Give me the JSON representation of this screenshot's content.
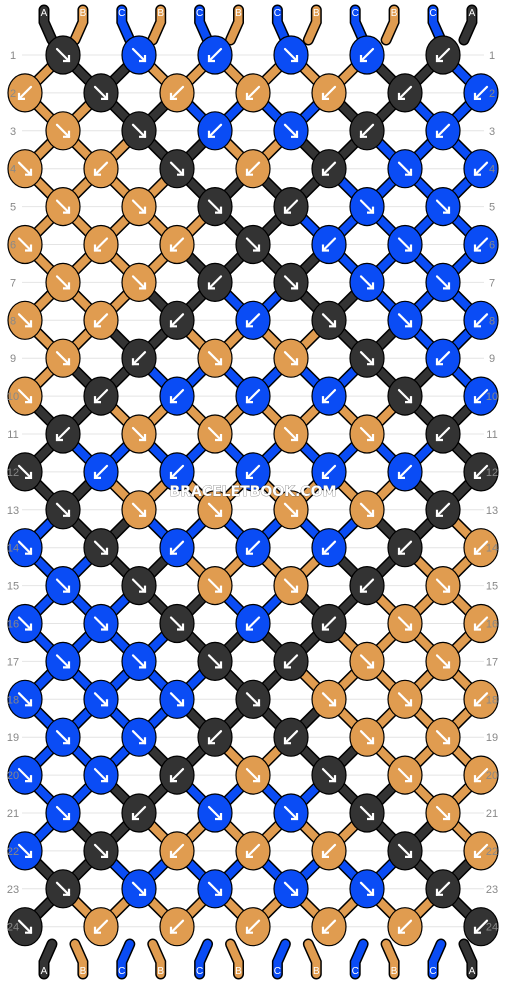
{
  "watermark": "BRACELETBOOK.COM",
  "colors": {
    "A": "#333333",
    "B": "#e09c50",
    "C": "#0a4cf5"
  },
  "strands": [
    "A",
    "B",
    "C",
    "B",
    "C",
    "B",
    "C",
    "B",
    "C",
    "B",
    "C",
    "A"
  ],
  "rows": [
    "1",
    "2",
    "3",
    "4",
    "5",
    "6",
    "7",
    "8",
    "9",
    "10",
    "11",
    "12",
    "13",
    "14",
    "15",
    "16",
    "17",
    "18",
    "19",
    "20",
    "21",
    "22",
    "23",
    "24"
  ],
  "knots": [
    [
      "A",
      "C",
      "C",
      "C",
      "C",
      "A"
    ],
    [
      "B",
      "A",
      "B",
      "B",
      "B",
      "A",
      "C"
    ],
    [
      "B",
      "A",
      "C",
      "C",
      "A",
      "C"
    ],
    [
      "B",
      "B",
      "A",
      "B",
      "A",
      "C",
      "C"
    ],
    [
      "B",
      "B",
      "A",
      "A",
      "C",
      "C"
    ],
    [
      "B",
      "B",
      "B",
      "A",
      "C",
      "C",
      "C"
    ],
    [
      "B",
      "B",
      "A",
      "A",
      "C",
      "C"
    ],
    [
      "B",
      "B",
      "A",
      "C",
      "A",
      "C",
      "C"
    ],
    [
      "B",
      "A",
      "B",
      "B",
      "A",
      "C"
    ],
    [
      "B",
      "A",
      "C",
      "C",
      "C",
      "A",
      "C"
    ],
    [
      "A",
      "B",
      "B",
      "B",
      "B",
      "A"
    ],
    [
      "A",
      "C",
      "C",
      "C",
      "C",
      "C",
      "A"
    ],
    [
      "A",
      "B",
      "B",
      "B",
      "B",
      "A"
    ],
    [
      "C",
      "A",
      "C",
      "C",
      "C",
      "A",
      "B"
    ],
    [
      "C",
      "A",
      "B",
      "B",
      "A",
      "B"
    ],
    [
      "C",
      "C",
      "A",
      "C",
      "A",
      "B",
      "B"
    ],
    [
      "C",
      "C",
      "A",
      "A",
      "B",
      "B"
    ],
    [
      "C",
      "C",
      "C",
      "A",
      "B",
      "B",
      "B"
    ],
    [
      "C",
      "C",
      "A",
      "A",
      "B",
      "B"
    ],
    [
      "C",
      "C",
      "A",
      "B",
      "A",
      "B",
      "B"
    ],
    [
      "C",
      "A",
      "C",
      "C",
      "A",
      "B"
    ],
    [
      "C",
      "A",
      "B",
      "B",
      "B",
      "A",
      "B"
    ],
    [
      "A",
      "C",
      "C",
      "C",
      "C",
      "A"
    ],
    [
      "A",
      "B",
      "B",
      "B",
      "B",
      "B",
      "A"
    ]
  ],
  "arrows": [
    [
      "dr",
      "dr",
      "dl",
      "dr",
      "dl",
      "dl"
    ],
    [
      "dl",
      "dr",
      "dl",
      "dl",
      "dl",
      "dl",
      "dl"
    ],
    [
      "dr",
      "dr",
      "dl",
      "dr",
      "dl",
      "dl"
    ],
    [
      "dr",
      "dl",
      "dr",
      "dl",
      "dl",
      "dr",
      "dl"
    ],
    [
      "dr",
      "dr",
      "dr",
      "dl",
      "dr",
      "dr"
    ],
    [
      "dr",
      "dl",
      "dl",
      "dr",
      "dl",
      "dr",
      "dl"
    ],
    [
      "dr",
      "dr",
      "dl",
      "dr",
      "dr",
      "dr"
    ],
    [
      "dr",
      "dl",
      "dl",
      "dl",
      "dr",
      "dr",
      "dl"
    ],
    [
      "dr",
      "dl",
      "dr",
      "dr",
      "dr",
      "dl"
    ],
    [
      "dr",
      "dl",
      "dl",
      "dl",
      "dl",
      "dr",
      "dl"
    ],
    [
      "dl",
      "dr",
      "dr",
      "dr",
      "dr",
      "dl"
    ],
    [
      "dr",
      "dl",
      "dl",
      "dl",
      "dl",
      "dl",
      "dl"
    ],
    [
      "dr",
      "dr",
      "dr",
      "dr",
      "dr",
      "dl"
    ],
    [
      "dr",
      "dr",
      "dl",
      "dl",
      "dl",
      "dl",
      "dl"
    ],
    [
      "dr",
      "dr",
      "dr",
      "dr",
      "dl",
      "dr"
    ],
    [
      "dr",
      "dr",
      "dr",
      "dl",
      "dl",
      "dr",
      "dl"
    ],
    [
      "dr",
      "dr",
      "dr",
      "dl",
      "dr",
      "dr"
    ],
    [
      "dr",
      "dr",
      "dr",
      "dr",
      "dr",
      "dr",
      "dl"
    ],
    [
      "dr",
      "dr",
      "dl",
      "dl",
      "dr",
      "dr"
    ],
    [
      "dr",
      "dr",
      "dl",
      "dr",
      "dr",
      "dr",
      "dl"
    ],
    [
      "dr",
      "dl",
      "dr",
      "dr",
      "dr",
      "dr"
    ],
    [
      "dr",
      "dr",
      "dl",
      "dl",
      "dl",
      "dr",
      "dl"
    ],
    [
      "dr",
      "dr",
      "dr",
      "dr",
      "dr",
      "dl"
    ],
    [
      "dr",
      "dl",
      "dl",
      "dl",
      "dl",
      "dl",
      "dl"
    ]
  ]
}
